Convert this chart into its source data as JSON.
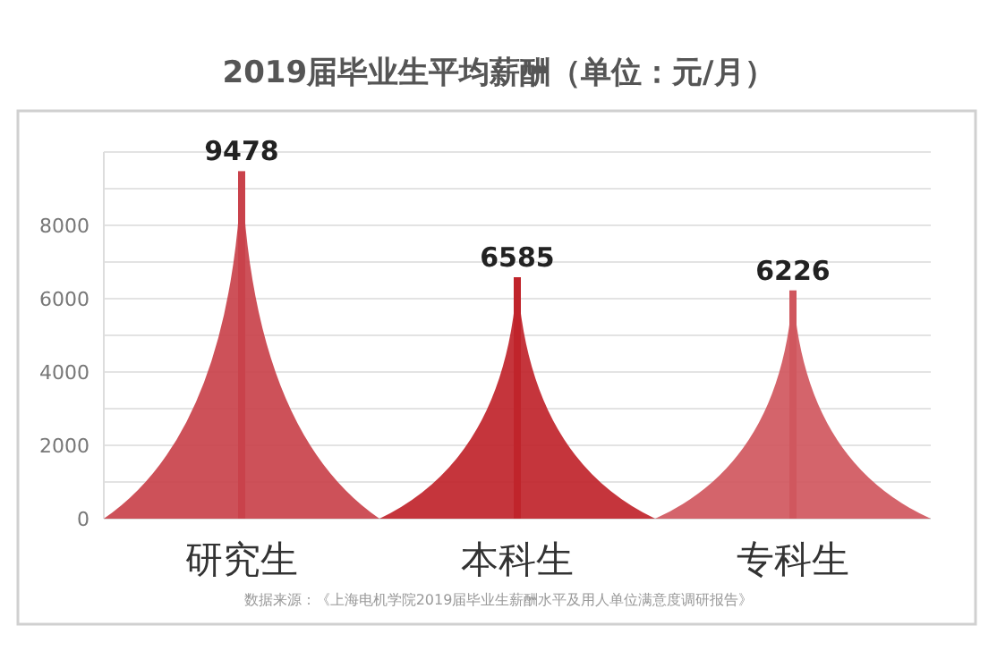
{
  "chart_data": {
    "type": "bar",
    "title": "2019届毕业生平均薪酬（单位：元/月）",
    "categories": [
      "研究生",
      "本科生",
      "专科生"
    ],
    "values": [
      9478,
      6585,
      6226
    ],
    "colors": [
      "#c9424b",
      "#c0242b",
      "#d0575e"
    ],
    "ylim": [
      0,
      10000
    ],
    "yticks": [
      0,
      {
        "value": 1000,
        "label": null
      },
      2000,
      {
        "value": 3000,
        "label": null
      },
      4000,
      {
        "value": 5000,
        "label": null
      },
      6000,
      {
        "value": 7000,
        "label": null
      },
      8000,
      {
        "value": 9000,
        "label": null
      },
      {
        "value": 10000,
        "label": null
      }
    ],
    "grid": "y",
    "data_labels": true,
    "annotations": [
      "数据来源：《上海电机学院2019届毕业生薪酬水平及用人单位满意度调研报告》"
    ]
  }
}
